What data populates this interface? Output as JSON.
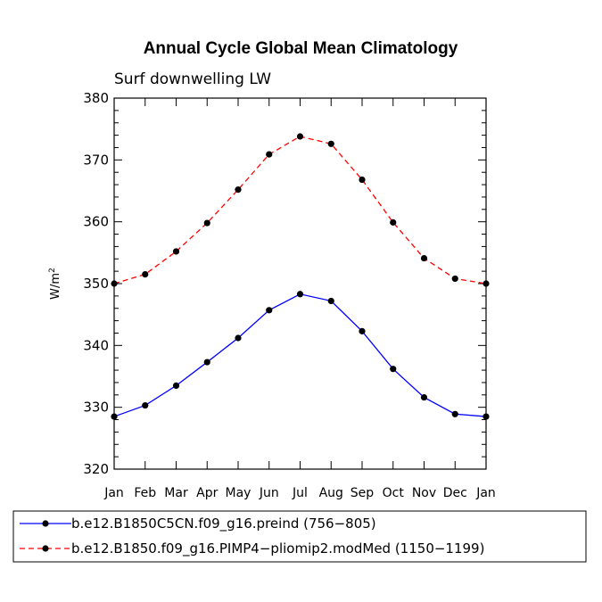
{
  "chart_data": {
    "type": "line",
    "title": "Annual Cycle Global Mean Climatology",
    "subtitle": "Surf downwelling LW",
    "xlabel": "",
    "ylabel_base": "W/m",
    "ylabel_exp": "2",
    "ylim": [
      320,
      380
    ],
    "yticks": [
      320,
      330,
      340,
      350,
      360,
      370,
      380
    ],
    "ytick_labels": [
      "320",
      "330",
      "340",
      "350",
      "360",
      "370",
      "380"
    ],
    "categories": [
      "Jan",
      "Feb",
      "Mar",
      "Apr",
      "May",
      "Jun",
      "Jul",
      "Aug",
      "Sep",
      "Oct",
      "Nov",
      "Dec",
      "Jan"
    ],
    "grid": false,
    "legend_position": "bottom",
    "series": [
      {
        "name": "b.e12.B1850C5CN.f09_g16.preind (756−805)",
        "color": "#0000ff",
        "style": "solid",
        "values": [
          328.5,
          330.3,
          333.5,
          337.3,
          341.2,
          345.7,
          348.3,
          347.2,
          342.3,
          336.2,
          331.6,
          328.9,
          328.5
        ]
      },
      {
        "name": "b.e12.B1850.f09_g16.PIMP4−pliomip2.modMed (1150−1199)",
        "color": "#ff0000",
        "style": "dashed",
        "values": [
          350.0,
          351.5,
          355.2,
          359.8,
          365.2,
          370.9,
          373.8,
          372.6,
          366.8,
          359.9,
          354.1,
          350.8,
          350.0
        ]
      }
    ],
    "marker_color": "#000000"
  }
}
